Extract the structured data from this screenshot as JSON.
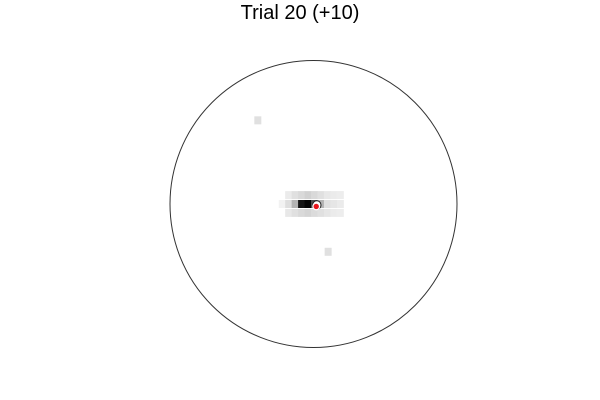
{
  "chart_data": {
    "type": "heatmap",
    "title": "Trial 20 (+10)",
    "xlabel": "",
    "ylabel": "",
    "xlim": [
      -1,
      1
    ],
    "ylim": [
      -1,
      1
    ],
    "boundary": "circle",
    "grid": false,
    "legend": "none",
    "colormap": "gray_r",
    "cells": [
      {
        "x": -0.388,
        "y": 0.583,
        "value": 0.12
      },
      {
        "x": -0.218,
        "y": 0.0,
        "value": 0.05
      },
      {
        "x": -0.173,
        "y": 0.0,
        "value": 0.13
      },
      {
        "x": -0.128,
        "y": 0.0,
        "value": 0.3
      },
      {
        "x": -0.083,
        "y": 0.0,
        "value": 0.92
      },
      {
        "x": -0.038,
        "y": 0.0,
        "value": 0.98
      },
      {
        "x": 0.007,
        "y": 0.0,
        "value": 0.7
      },
      {
        "x": 0.052,
        "y": 0.0,
        "value": 0.3
      },
      {
        "x": 0.097,
        "y": 0.0,
        "value": 0.12
      },
      {
        "x": 0.142,
        "y": 0.0,
        "value": 0.1
      },
      {
        "x": 0.187,
        "y": 0.0,
        "value": 0.08
      },
      {
        "x": -0.173,
        "y": 0.062,
        "value": 0.08
      },
      {
        "x": -0.128,
        "y": 0.062,
        "value": 0.12
      },
      {
        "x": -0.083,
        "y": 0.062,
        "value": 0.15
      },
      {
        "x": -0.038,
        "y": 0.062,
        "value": 0.18
      },
      {
        "x": 0.007,
        "y": 0.062,
        "value": 0.15
      },
      {
        "x": 0.052,
        "y": 0.062,
        "value": 0.12
      },
      {
        "x": 0.097,
        "y": 0.062,
        "value": 0.09
      },
      {
        "x": 0.142,
        "y": 0.062,
        "value": 0.08
      },
      {
        "x": 0.187,
        "y": 0.062,
        "value": 0.07
      },
      {
        "x": -0.173,
        "y": -0.062,
        "value": 0.09
      },
      {
        "x": -0.128,
        "y": -0.062,
        "value": 0.12
      },
      {
        "x": -0.083,
        "y": -0.062,
        "value": 0.15
      },
      {
        "x": -0.038,
        "y": -0.062,
        "value": 0.17
      },
      {
        "x": 0.007,
        "y": -0.062,
        "value": 0.14
      },
      {
        "x": 0.052,
        "y": -0.062,
        "value": 0.12
      },
      {
        "x": 0.097,
        "y": -0.062,
        "value": 0.1
      },
      {
        "x": 0.142,
        "y": -0.062,
        "value": 0.08
      },
      {
        "x": 0.187,
        "y": -0.062,
        "value": 0.07
      },
      {
        "x": 0.102,
        "y": -0.333,
        "value": 0.12
      }
    ],
    "markers": [
      {
        "label": "target",
        "x": 0.023,
        "y": -0.007,
        "color": "#ffffff"
      },
      {
        "label": "response",
        "x": 0.019,
        "y": -0.017,
        "color": "#e8141b"
      }
    ]
  }
}
